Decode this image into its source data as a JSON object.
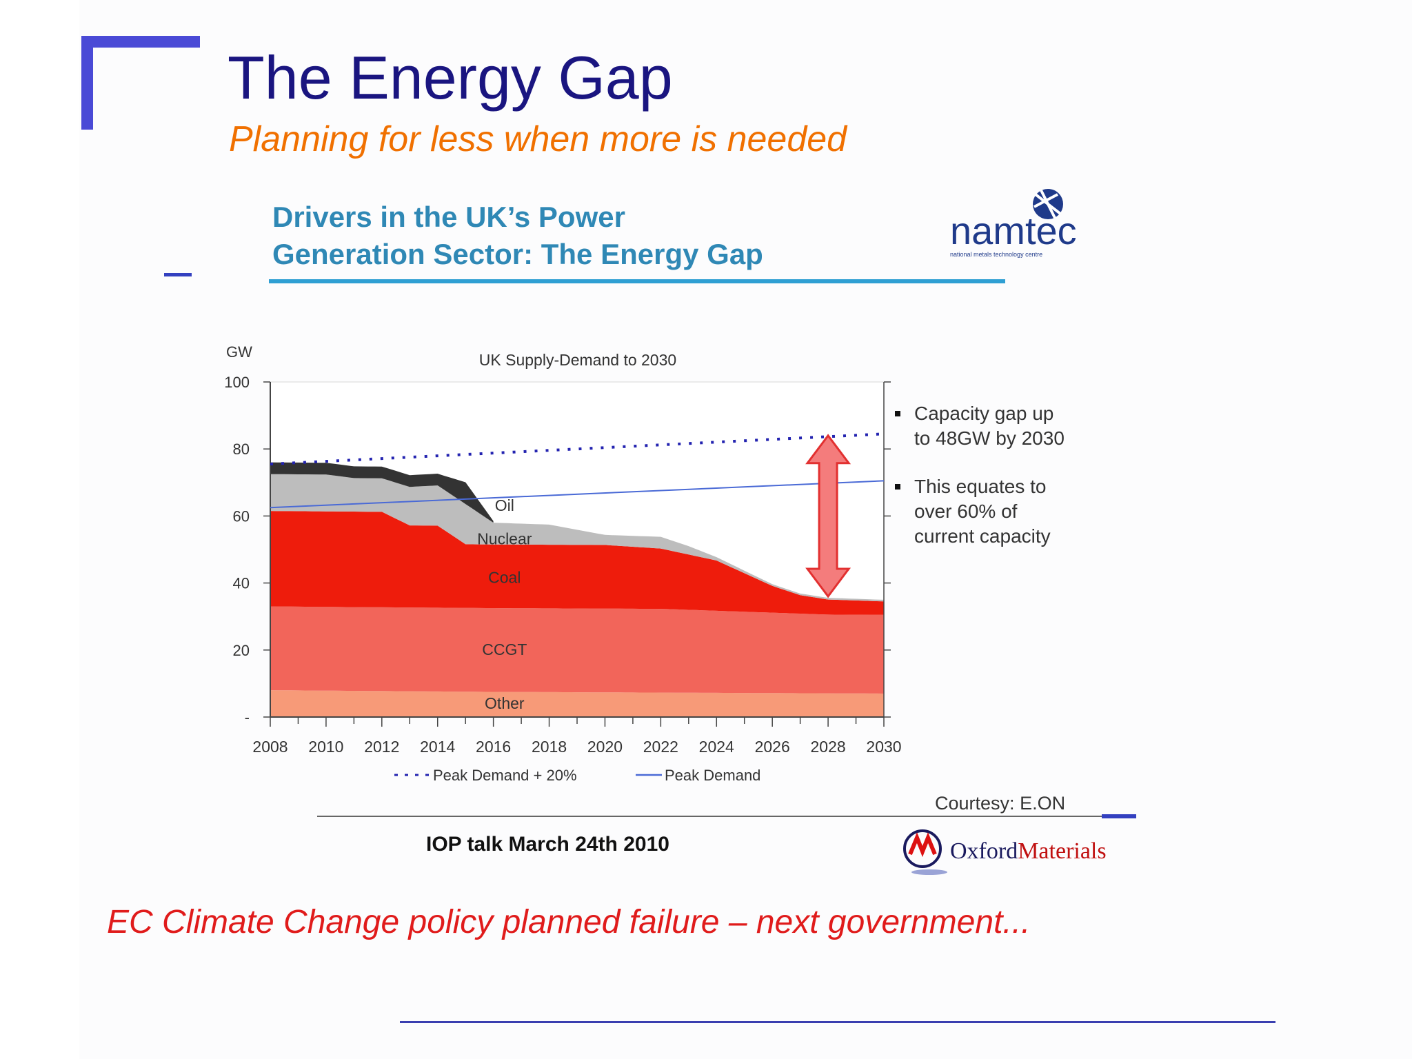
{
  "slide": {
    "title": "The Energy Gap",
    "subtitle": "Planning for less when more is needed",
    "inner_title_line1": "Drivers in the UK’s Power",
    "inner_title_line2": "Generation Sector: The Energy Gap",
    "namtec_logo_text": "namtec",
    "namtec_logo_sub": "national metals technology centre",
    "bullets": [
      "Capacity gap up to 48GW by 2030",
      "This equates to over 60% of current capacity"
    ],
    "courtesy_prefix": "Courtesy:",
    "courtesy_source": "E.ON",
    "footer_talk": "IOP talk March 24th 2010",
    "oxford_logo_text_a": "Oxford",
    "oxford_logo_text_b": "Materials",
    "bottom_text": "EC Climate Change policy planned failure – next government...",
    "colors": {
      "title": "#1a1580",
      "subtitle": "#f07000",
      "bottom_text": "#e01b1b",
      "accent_blue": "#4a4ad6"
    }
  },
  "chart_data": {
    "type": "area",
    "title": "UK Supply-Demand to 2030",
    "ylabel": "GW",
    "ylim": [
      0,
      100
    ],
    "yticks": [
      0,
      20,
      40,
      60,
      80,
      100
    ],
    "ytick_labels": [
      "-",
      "20",
      "40",
      "60",
      "80",
      "100"
    ],
    "x": [
      2008,
      2010,
      2012,
      2014,
      2016,
      2018,
      2020,
      2022,
      2024,
      2026,
      2028,
      2030
    ],
    "xtick_labels": [
      "2008",
      "2010",
      "2012",
      "2014",
      "2016",
      "2018",
      "2020",
      "2022",
      "2024",
      "2026",
      "2028",
      "2030"
    ],
    "stacked": true,
    "layer_labels": {
      "oil": "Oil",
      "nuclear": "Nuclear",
      "coal": "Coal",
      "ccgt": "CCGT",
      "other": "Other"
    },
    "series": [
      {
        "name": "Other",
        "color": "#f79a78",
        "points": [
          [
            2008,
            8
          ],
          [
            2016,
            7.5
          ],
          [
            2030,
            7
          ]
        ]
      },
      {
        "name": "CCGT",
        "color": "#f2655a",
        "points": [
          [
            2008,
            25
          ],
          [
            2016,
            25
          ],
          [
            2022,
            25
          ],
          [
            2026,
            24
          ],
          [
            2028,
            23.5
          ],
          [
            2030,
            23.5
          ]
        ]
      },
      {
        "name": "Coal",
        "color": "#ee1c0c",
        "points": [
          [
            2008,
            28.5
          ],
          [
            2012,
            28.5
          ],
          [
            2013,
            24.5
          ],
          [
            2014,
            24.5
          ],
          [
            2015,
            19
          ],
          [
            2016,
            19
          ],
          [
            2020,
            19
          ],
          [
            2022,
            18
          ],
          [
            2024,
            15
          ],
          [
            2026,
            8
          ],
          [
            2027,
            5.5
          ],
          [
            2028,
            4.5
          ],
          [
            2030,
            4
          ]
        ]
      },
      {
        "name": "Nuclear",
        "color": "#bdbdbd",
        "points": [
          [
            2008,
            11
          ],
          [
            2010,
            11
          ],
          [
            2011,
            10
          ],
          [
            2012,
            10
          ],
          [
            2013,
            11.5
          ],
          [
            2014,
            12
          ],
          [
            2015,
            12
          ],
          [
            2016,
            6.5
          ],
          [
            2018,
            6
          ],
          [
            2020,
            3
          ],
          [
            2022,
            3.5
          ],
          [
            2023,
            2.5
          ],
          [
            2024,
            1
          ],
          [
            2026,
            0.5
          ],
          [
            2028,
            0.5
          ],
          [
            2030,
            0.5
          ]
        ]
      },
      {
        "name": "Oil",
        "color": "#333333",
        "points": [
          [
            2008,
            3.5
          ],
          [
            2010,
            3.5
          ],
          [
            2012,
            3.5
          ],
          [
            2013,
            3.5
          ],
          [
            2014,
            3.5
          ],
          [
            2015,
            6.5
          ],
          [
            2016,
            0.5
          ]
        ]
      }
    ],
    "lines": [
      {
        "name": "Peak Demand + 20%",
        "style": "dotted",
        "color": "#2323b0",
        "points": [
          [
            2008,
            75.5
          ],
          [
            2030,
            84.5
          ]
        ]
      },
      {
        "name": "Peak Demand",
        "style": "solid",
        "color": "#4a6ad6",
        "points": [
          [
            2008,
            62.5
          ],
          [
            2030,
            70.5
          ]
        ]
      }
    ],
    "gap_arrow": {
      "x": 2028,
      "from": 36,
      "to": 84
    },
    "legend_position": "bottom"
  }
}
